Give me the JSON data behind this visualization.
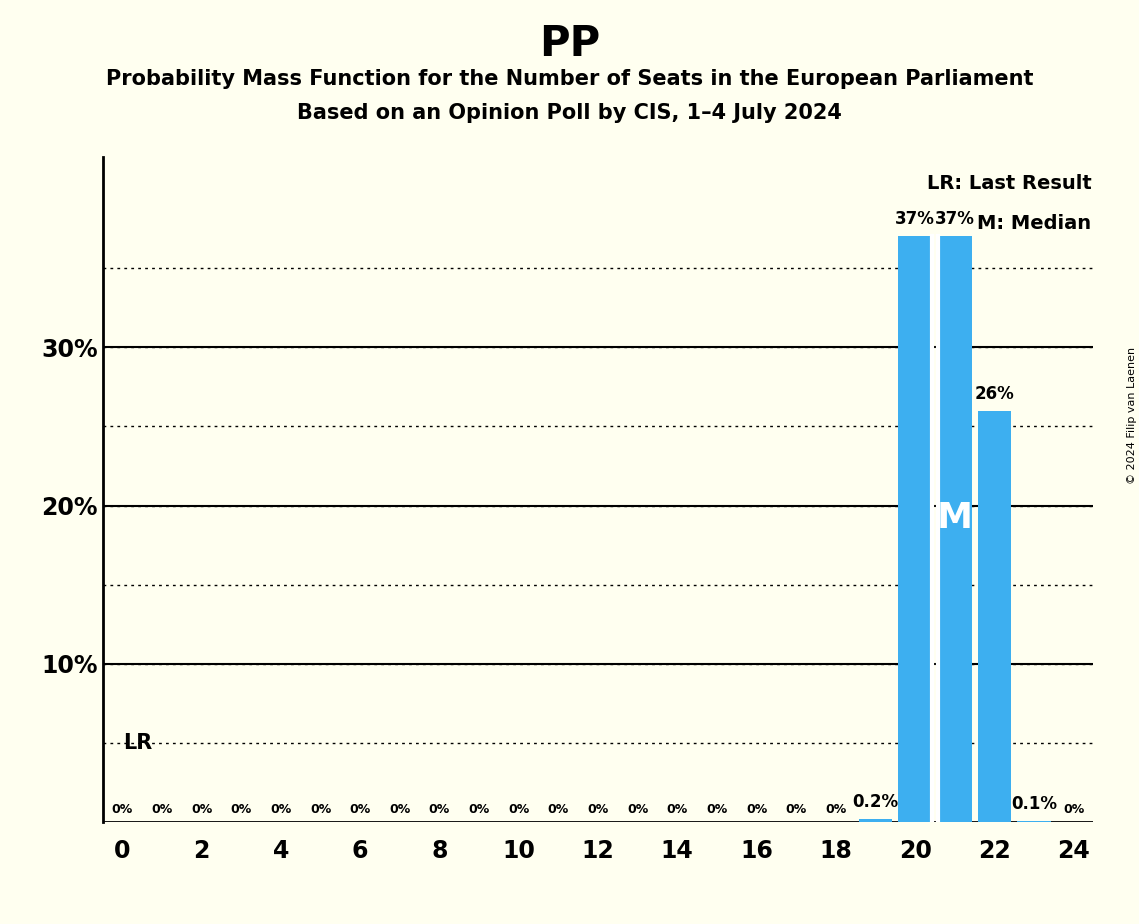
{
  "title": "PP",
  "subtitle1": "Probability Mass Function for the Number of Seats in the European Parliament",
  "subtitle2": "Based on an Opinion Poll by CIS, 1–4 July 2024",
  "copyright": "© 2024 Filip van Laenen",
  "seats": [
    0,
    1,
    2,
    3,
    4,
    5,
    6,
    7,
    8,
    9,
    10,
    11,
    12,
    13,
    14,
    15,
    16,
    17,
    18,
    19,
    20,
    21,
    22,
    23,
    24
  ],
  "probabilities": [
    0,
    0,
    0,
    0,
    0,
    0,
    0,
    0,
    0,
    0,
    0,
    0,
    0,
    0,
    0,
    0,
    0,
    0,
    0,
    0.2,
    37,
    37,
    26,
    0.1,
    0
  ],
  "bar_color": "#3daff0",
  "background_color": "#fffff0",
  "last_result_seat": 20,
  "median_seat": 21,
  "xlim": [
    -0.5,
    24.5
  ],
  "ylim": [
    0,
    42
  ],
  "yticks": [
    0,
    10,
    20,
    30
  ],
  "ytick_labels": [
    "",
    "10%",
    "20%",
    "30%"
  ],
  "xlabel_ticks": [
    0,
    2,
    4,
    6,
    8,
    10,
    12,
    14,
    16,
    18,
    20,
    22,
    24
  ],
  "bar_labels": {
    "19": "0.2%",
    "20": "37%",
    "21": "37%",
    "22": "26%",
    "23": "0.1%"
  },
  "lr_label": "LR",
  "median_label": "M",
  "legend_lr": "LR: Last Result",
  "legend_m": "M: Median",
  "dotted_lines": [
    5,
    10,
    15,
    20,
    25,
    30,
    35
  ],
  "solid_lines": [
    10,
    20,
    30
  ],
  "lr_y": 5,
  "bar_width": 0.85
}
